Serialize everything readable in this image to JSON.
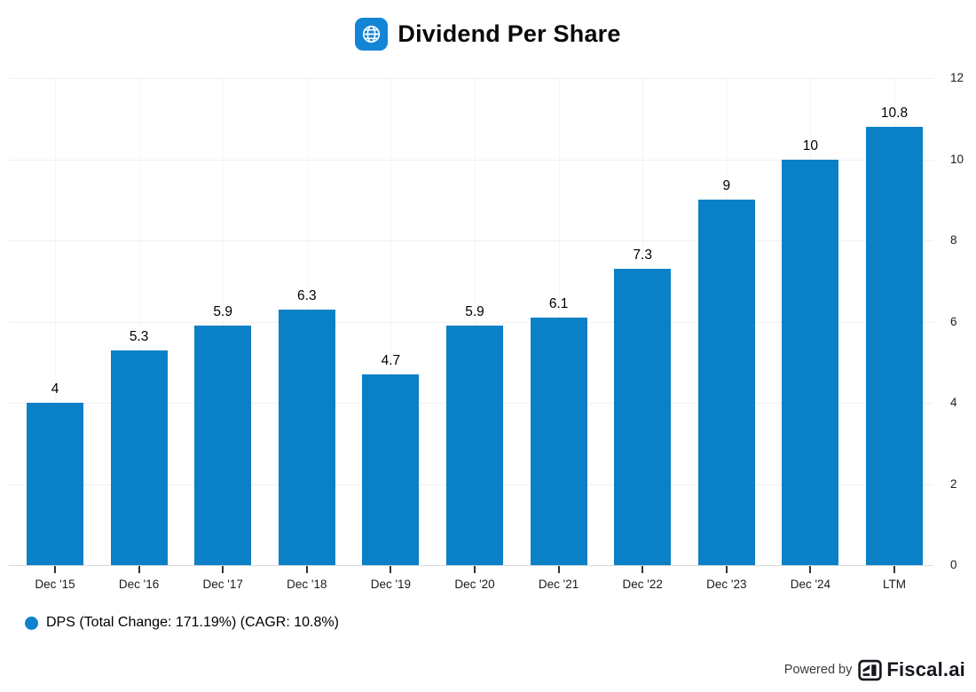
{
  "header": {
    "title": "Dividend Per Share",
    "icon": "globe-icon"
  },
  "chart_data": {
    "type": "bar",
    "title": "Dividend Per Share",
    "categories": [
      "Dec '15",
      "Dec '16",
      "Dec '17",
      "Dec '18",
      "Dec '19",
      "Dec '20",
      "Dec '21",
      "Dec '22",
      "Dec '23",
      "Dec '24",
      "LTM"
    ],
    "values": [
      4,
      5.3,
      5.9,
      6.3,
      4.7,
      5.9,
      6.1,
      7.3,
      9,
      10,
      10.8
    ],
    "value_labels": [
      "4",
      "5.3",
      "5.9",
      "6.3",
      "4.7",
      "5.9",
      "6.1",
      "7.3",
      "9",
      "10",
      "10.8"
    ],
    "series_name": "DPS",
    "xlabel": "",
    "ylabel": "",
    "ylim": [
      0,
      12
    ],
    "yticks": [
      0,
      2,
      4,
      6,
      8,
      10,
      12
    ],
    "yaxis_side": "right",
    "grid": true,
    "legend_position": "bottom-left"
  },
  "legend": {
    "label": "DPS (Total Change: 171.19%) (CAGR: 10.8%)"
  },
  "footer": {
    "powered_by": "Powered by",
    "brand": "Fiscal.ai"
  },
  "colors": {
    "bar": "#0a80c7",
    "legend_dot": "#0e82cd",
    "title_icon_bg": "#1285d6",
    "grid_h": "#f0f0f0",
    "grid_v": "#f6f6f6",
    "axis": "#d9d9d9",
    "brand_text": "#16161f"
  }
}
